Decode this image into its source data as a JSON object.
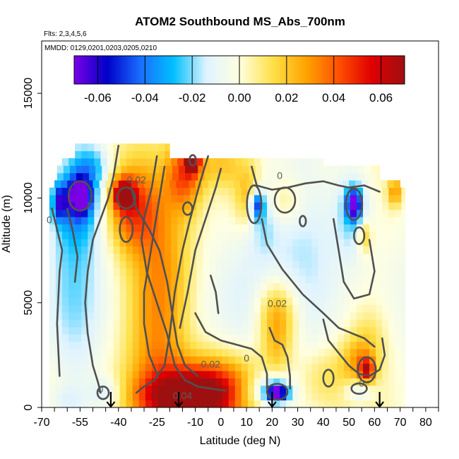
{
  "chart_data": {
    "type": "heatmap",
    "title": "ATOM2 Southbound MS_Abs_700nm",
    "subtitle_flights": "Flts: 2,3,4,5,6",
    "subtitle_dates": "MMDD: 0129,0201,0203,0205,0210",
    "xlabel": "Latitude (deg N)",
    "ylabel": "Altitude (m)",
    "xlim": [
      -70,
      85
    ],
    "ylim": [
      0,
      17500
    ],
    "x_ticks": [
      -70,
      -55,
      -40,
      -25,
      -10,
      0,
      10,
      20,
      30,
      40,
      50,
      60,
      70,
      80
    ],
    "x_minor_step": 5,
    "y_ticks": [
      0,
      5000,
      10000,
      15000
    ],
    "colorbar": {
      "min": -0.07,
      "max": 0.07,
      "ticks": [
        -0.06,
        -0.04,
        -0.02,
        0.0,
        0.02,
        0.04,
        0.06
      ],
      "tick_labels": [
        "-0.06",
        "-0.04",
        "-0.02",
        "0.00",
        "0.02",
        "0.04",
        "0.06"
      ],
      "colors": [
        "#7a00e6",
        "#0000c8",
        "#1a6dff",
        "#00bfff",
        "#dff3ff",
        "#ffffe0",
        "#ffe14a",
        "#ffa500",
        "#ff5000",
        "#e00000",
        "#9e1010"
      ]
    },
    "contour_labels": [
      {
        "text": "0",
        "x": -67,
        "y": 8800
      },
      {
        "text": "0.02",
        "x": -33,
        "y": 10700
      },
      {
        "text": "0",
        "x": 23,
        "y": 10900
      },
      {
        "text": "0.02",
        "x": 22,
        "y": 4800
      },
      {
        "text": "0.02",
        "x": -4,
        "y": 1900
      },
      {
        "text": "0",
        "x": 10,
        "y": 2200
      },
      {
        "text": "0",
        "x": -47,
        "y": 700
      },
      {
        "text": "0",
        "x": 55,
        "y": 1000
      },
      {
        "text": "0.04",
        "x": -15,
        "y": 400
      }
    ],
    "arrows_lat": [
      -43,
      -16.5,
      20,
      62
    ],
    "data_extent": {
      "lat": [
        -67,
        72
      ],
      "alt": [
        0,
        12500
      ]
    },
    "features": [
      {
        "lat": -12,
        "alt": 500,
        "value": 0.06,
        "sx": 12,
        "sy": 800
      },
      {
        "lat": -3,
        "alt": 900,
        "value": 0.045,
        "sx": 14,
        "sy": 1200
      },
      {
        "lat": -25,
        "alt": 3500,
        "value": 0.022,
        "sx": 8,
        "sy": 4500
      },
      {
        "lat": -20,
        "alt": 6500,
        "value": 0.018,
        "sx": 9,
        "sy": 3000
      },
      {
        "lat": -35,
        "alt": 9500,
        "value": 0.035,
        "sx": 7,
        "sy": 1400
      },
      {
        "lat": -38,
        "alt": 10200,
        "value": 0.055,
        "sx": 3,
        "sy": 500
      },
      {
        "lat": -14,
        "alt": 11200,
        "value": 0.04,
        "sx": 5,
        "sy": 1200
      },
      {
        "lat": -11,
        "alt": 11800,
        "value": 0.06,
        "sx": 2,
        "sy": 400
      },
      {
        "lat": 0,
        "alt": 11600,
        "value": 0.018,
        "sx": 6,
        "sy": 800
      },
      {
        "lat": -55,
        "alt": 10100,
        "value": -0.06,
        "sx": 3,
        "sy": 600
      },
      {
        "lat": -56,
        "alt": 9900,
        "value": -0.03,
        "sx": 7,
        "sy": 1500
      },
      {
        "lat": -63,
        "alt": 9800,
        "value": -0.04,
        "sx": 2,
        "sy": 600
      },
      {
        "lat": -50,
        "alt": 11500,
        "value": -0.02,
        "sx": 5,
        "sy": 700
      },
      {
        "lat": -58,
        "alt": 6000,
        "value": -0.015,
        "sx": 8,
        "sy": 3500
      },
      {
        "lat": 12,
        "alt": 10000,
        "value": 0.03,
        "sx": 4,
        "sy": 1000
      },
      {
        "lat": 14,
        "alt": 9700,
        "value": -0.05,
        "sx": 2,
        "sy": 500
      },
      {
        "lat": 16,
        "alt": 9500,
        "value": -0.025,
        "sx": 4,
        "sy": 1200
      },
      {
        "lat": 24,
        "alt": 9800,
        "value": 0.015,
        "sx": 6,
        "sy": 800
      },
      {
        "lat": 52,
        "alt": 9700,
        "value": -0.06,
        "sx": 2,
        "sy": 500
      },
      {
        "lat": 52,
        "alt": 9400,
        "value": -0.025,
        "sx": 5,
        "sy": 1500
      },
      {
        "lat": 30,
        "alt": 8000,
        "value": -0.012,
        "sx": 15,
        "sy": 3000
      },
      {
        "lat": 10,
        "alt": 4500,
        "value": -0.012,
        "sx": 8,
        "sy": 3000
      },
      {
        "lat": 22,
        "alt": 4500,
        "value": 0.03,
        "sx": 6,
        "sy": 1200
      },
      {
        "lat": 22,
        "alt": 2500,
        "value": 0.015,
        "sx": 4,
        "sy": 1500
      },
      {
        "lat": 22,
        "alt": 700,
        "value": -0.07,
        "sx": 3,
        "sy": 300
      },
      {
        "lat": 20,
        "alt": 900,
        "value": -0.03,
        "sx": 6,
        "sy": 700
      },
      {
        "lat": 8,
        "alt": 600,
        "value": -0.015,
        "sx": 8,
        "sy": 600
      },
      {
        "lat": 57,
        "alt": 1800,
        "value": 0.045,
        "sx": 2,
        "sy": 400
      },
      {
        "lat": 54,
        "alt": 2200,
        "value": 0.022,
        "sx": 5,
        "sy": 800
      },
      {
        "lat": 58,
        "alt": 3500,
        "value": 0.01,
        "sx": 5,
        "sy": 1000
      },
      {
        "lat": 40,
        "alt": 1500,
        "value": 0.012,
        "sx": 7,
        "sy": 1000
      },
      {
        "lat": 68,
        "alt": 10300,
        "value": 0.03,
        "sx": 2,
        "sy": 500
      },
      {
        "lat": 56,
        "alt": 8200,
        "value": 0.025,
        "sx": 2,
        "sy": 600
      },
      {
        "lat": 54,
        "alt": 800,
        "value": -0.02,
        "sx": 4,
        "sy": 400
      },
      {
        "lat": -45,
        "alt": 700,
        "value": -0.015,
        "sx": 4,
        "sy": 500
      },
      {
        "lat": -60,
        "alt": 300,
        "value": -0.01,
        "sx": 5,
        "sy": 500
      }
    ],
    "contour_paths": [
      [
        [
          -40,
          12500
        ],
        [
          -42,
          11000
        ],
        [
          -44,
          10000
        ],
        [
          -47,
          9000
        ],
        [
          -50,
          8000
        ],
        [
          -52,
          6500
        ],
        [
          -53,
          5000
        ],
        [
          -52,
          3500
        ],
        [
          -50,
          2000
        ],
        [
          -48,
          1200
        ],
        [
          -47,
          700
        ]
      ],
      [
        [
          -25,
          12000
        ],
        [
          -27,
          10500
        ],
        [
          -30,
          9000
        ],
        [
          -31,
          8000
        ],
        [
          -29,
          6500
        ],
        [
          -25,
          5000
        ],
        [
          -21,
          3500
        ],
        [
          -18,
          2000
        ],
        [
          -14,
          1300
        ],
        [
          -9,
          1000
        ],
        [
          -4,
          900
        ],
        [
          2,
          800
        ]
      ],
      [
        [
          -5,
          12000
        ],
        [
          -8,
          10800
        ],
        [
          -12,
          9000
        ],
        [
          -15,
          7500
        ],
        [
          -18,
          5500
        ],
        [
          -20,
          3500
        ],
        [
          -22,
          2000
        ],
        [
          -26,
          1300
        ],
        [
          -30,
          1000
        ],
        [
          -33,
          700
        ]
      ],
      [
        [
          -35,
          10500
        ],
        [
          -33,
          9500
        ],
        [
          -28,
          8500
        ],
        [
          -24,
          7500
        ],
        [
          -21,
          6000
        ],
        [
          -19,
          4500
        ],
        [
          -17,
          3000
        ],
        [
          -14,
          2000
        ],
        [
          -9,
          1500
        ]
      ],
      [
        [
          -22,
          11500
        ],
        [
          -24,
          10000
        ],
        [
          -26,
          8500
        ],
        [
          -28,
          7000
        ],
        [
          -30,
          5500
        ],
        [
          -30,
          4000
        ],
        [
          -28,
          2500
        ],
        [
          -25,
          1600
        ]
      ],
      [
        [
          12,
          11500
        ],
        [
          14,
          10600
        ],
        [
          20,
          10400
        ],
        [
          26,
          10500
        ],
        [
          33,
          10700
        ],
        [
          40,
          10800
        ],
        [
          46,
          10600
        ],
        [
          50,
          10500
        ],
        [
          56,
          10600
        ],
        [
          62,
          10300
        ]
      ],
      [
        [
          0,
          11400
        ],
        [
          -2,
          10500
        ],
        [
          -6,
          9000
        ],
        [
          -10,
          7500
        ],
        [
          -13,
          5500
        ],
        [
          -16,
          3800
        ]
      ],
      [
        [
          16,
          9000
        ],
        [
          18,
          7800
        ],
        [
          24,
          6600
        ],
        [
          32,
          5400
        ],
        [
          40,
          4500
        ],
        [
          46,
          3800
        ],
        [
          52,
          3500
        ],
        [
          56,
          3300
        ],
        [
          60,
          2900
        ]
      ],
      [
        [
          -10,
          4500
        ],
        [
          -6,
          3600
        ],
        [
          0,
          3200
        ],
        [
          6,
          3000
        ],
        [
          12,
          2800
        ],
        [
          16,
          2400
        ],
        [
          18,
          1600
        ],
        [
          18,
          900
        ]
      ],
      [
        [
          19,
          3800
        ],
        [
          21,
          3200
        ],
        [
          24,
          3000
        ],
        [
          26,
          2400
        ],
        [
          27,
          1500
        ],
        [
          27,
          900
        ]
      ],
      [
        [
          40,
          4200
        ],
        [
          42,
          3200
        ],
        [
          46,
          2600
        ],
        [
          50,
          2000
        ],
        [
          54,
          1600
        ],
        [
          58,
          1500
        ],
        [
          62,
          1800
        ],
        [
          64,
          2500
        ],
        [
          63,
          3300
        ]
      ],
      [
        [
          44,
          9000
        ],
        [
          46,
          7500
        ],
        [
          48,
          6000
        ],
        [
          52,
          5200
        ],
        [
          58,
          5400
        ],
        [
          60,
          6500
        ],
        [
          58,
          8000
        ]
      ],
      [
        [
          -60,
          9500
        ],
        [
          -58,
          8500
        ],
        [
          -56,
          7200
        ],
        [
          -57,
          6000
        ]
      ],
      [
        [
          -66,
          9500
        ],
        [
          -64,
          8500
        ],
        [
          -62,
          7500
        ],
        [
          -63,
          6500
        ],
        [
          -64,
          4000
        ],
        [
          -63,
          1500
        ]
      ],
      [
        [
          -4,
          6300
        ],
        [
          -2,
          5500
        ],
        [
          -1,
          4500
        ]
      ]
    ],
    "contour_loops": [
      {
        "lat": -55,
        "alt": 10100,
        "rx": 4.5,
        "ry": 700
      },
      {
        "lat": -37,
        "alt": 10000,
        "rx": 3.5,
        "ry": 500
      },
      {
        "lat": -11,
        "alt": 11800,
        "rx": 1.3,
        "ry": 250
      },
      {
        "lat": 13,
        "alt": 9700,
        "rx": 2.8,
        "ry": 900
      },
      {
        "lat": 25,
        "alt": 9900,
        "rx": 4,
        "ry": 600
      },
      {
        "lat": 52,
        "alt": 9700,
        "rx": 3.2,
        "ry": 750
      },
      {
        "lat": 54,
        "alt": 8200,
        "rx": 2,
        "ry": 400
      },
      {
        "lat": 22,
        "alt": 750,
        "rx": 4,
        "ry": 380
      },
      {
        "lat": 57,
        "alt": 1800,
        "rx": 3.5,
        "ry": 600
      },
      {
        "lat": -37,
        "alt": 8500,
        "rx": 2.5,
        "ry": 600
      },
      {
        "lat": -46,
        "alt": 700,
        "rx": 2.2,
        "ry": 300
      },
      {
        "lat": 54,
        "alt": 900,
        "rx": 3,
        "ry": 250
      },
      {
        "lat": 42,
        "alt": 1400,
        "rx": 2,
        "ry": 400
      },
      {
        "lat": -13,
        "alt": 9500,
        "rx": 1.8,
        "ry": 300
      },
      {
        "lat": 32,
        "alt": 8900,
        "rx": 1.2,
        "ry": 250
      }
    ]
  }
}
